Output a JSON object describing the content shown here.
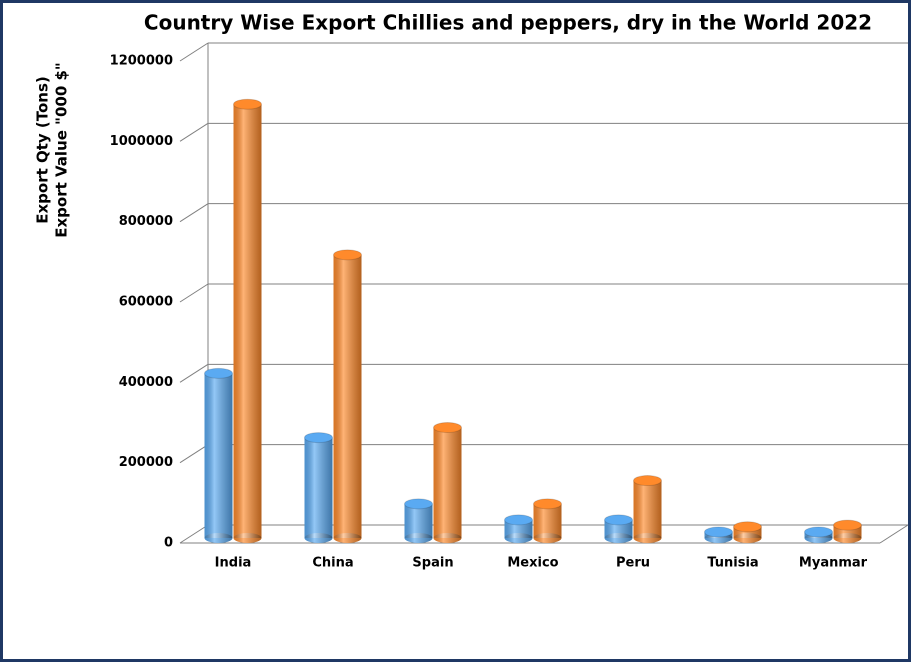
{
  "chart_data": {
    "type": "cylinder-bar",
    "title": "Country Wise Export Chillies and peppers, dry  in the World 2022",
    "ylabel": [
      "Export Qty (Tons)",
      "Export Value \"000 $\""
    ],
    "categories": [
      "India",
      "China",
      "Spain",
      "Mexico",
      "Peru",
      "Tunisia",
      "Myanmar"
    ],
    "series": [
      {
        "color": "#5aaaf2",
        "values": [
          410000,
          250000,
          85000,
          45000,
          45000,
          15000,
          15000
        ]
      },
      {
        "color": "#ff8a2b",
        "values": [
          1080000,
          705000,
          275000,
          85000,
          143000,
          28000,
          32000
        ]
      }
    ],
    "ylim": [
      0,
      1200000
    ],
    "yticks": [
      0,
      200000,
      400000,
      600000,
      800000,
      1000000,
      1200000
    ],
    "grid": true
  }
}
